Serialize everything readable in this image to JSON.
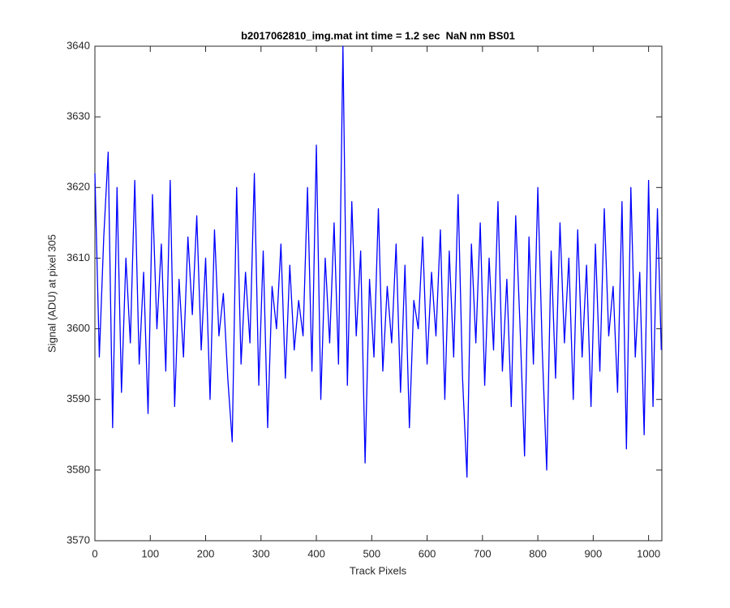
{
  "chart_data": {
    "type": "line",
    "title": "b2017062810_img.mat int time = 1.2 sec  NaN nm BS01",
    "x_label": "Track Pixels",
    "y_label": "Signal (ADU) at pixel 305",
    "x": [
      0,
      8,
      16,
      24,
      32,
      40,
      48,
      56,
      64,
      72,
      80,
      88,
      96,
      104,
      112,
      120,
      128,
      136,
      144,
      152,
      160,
      168,
      176,
      184,
      192,
      200,
      208,
      216,
      224,
      232,
      240,
      248,
      256,
      264,
      272,
      280,
      288,
      296,
      304,
      312,
      320,
      328,
      336,
      344,
      352,
      360,
      368,
      376,
      384,
      392,
      400,
      408,
      416,
      424,
      432,
      440,
      448,
      456,
      464,
      472,
      480,
      488,
      496,
      504,
      512,
      520,
      528,
      536,
      544,
      552,
      560,
      568,
      576,
      584,
      592,
      600,
      608,
      616,
      624,
      632,
      640,
      648,
      656,
      664,
      672,
      680,
      688,
      696,
      704,
      712,
      720,
      728,
      736,
      744,
      752,
      760,
      768,
      776,
      784,
      792,
      800,
      808,
      816,
      824,
      832,
      840,
      848,
      856,
      864,
      872,
      880,
      888,
      896,
      904,
      912,
      920,
      928,
      936,
      944,
      952,
      960,
      968,
      976,
      984,
      992,
      1000,
      1008,
      1016,
      1023
    ],
    "series": [
      {
        "name": "signal",
        "color": "#0000ff",
        "values": [
          3622,
          3596,
          3613,
          3625,
          3586,
          3620,
          3591,
          3610,
          3598,
          3621,
          3595,
          3608,
          3588,
          3619,
          3600,
          3612,
          3594,
          3621,
          3589,
          3607,
          3596,
          3613,
          3602,
          3616,
          3597,
          3610,
          3590,
          3614,
          3599,
          3605,
          3593,
          3584,
          3620,
          3595,
          3608,
          3598,
          3622,
          3592,
          3611,
          3586,
          3606,
          3600,
          3612,
          3593,
          3609,
          3597,
          3604,
          3599,
          3620,
          3594,
          3626,
          3590,
          3610,
          3598,
          3615,
          3595,
          3640,
          3592,
          3618,
          3599,
          3611,
          3581,
          3607,
          3596,
          3617,
          3594,
          3606,
          3598,
          3612,
          3591,
          3609,
          3586,
          3604,
          3600,
          3613,
          3595,
          3608,
          3599,
          3614,
          3590,
          3611,
          3596,
          3619,
          3593,
          3579,
          3612,
          3598,
          3615,
          3592,
          3610,
          3597,
          3618,
          3594,
          3607,
          3589,
          3616,
          3600,
          3582,
          3613,
          3595,
          3620,
          3597,
          3580,
          3611,
          3593,
          3615,
          3598,
          3610,
          3590,
          3614,
          3596,
          3609,
          3589,
          3612,
          3594,
          3617,
          3599,
          3606,
          3591,
          3618,
          3583,
          3620,
          3596,
          3608,
          3585,
          3621,
          3589,
          3617,
          3597
        ]
      }
    ],
    "xlim": [
      0,
      1024
    ],
    "ylim": [
      3570,
      3640
    ],
    "xticks": [
      0,
      100,
      200,
      300,
      400,
      500,
      600,
      700,
      800,
      900,
      1000
    ],
    "yticks": [
      3570,
      3580,
      3590,
      3600,
      3610,
      3620,
      3630,
      3640
    ],
    "grid": false
  }
}
